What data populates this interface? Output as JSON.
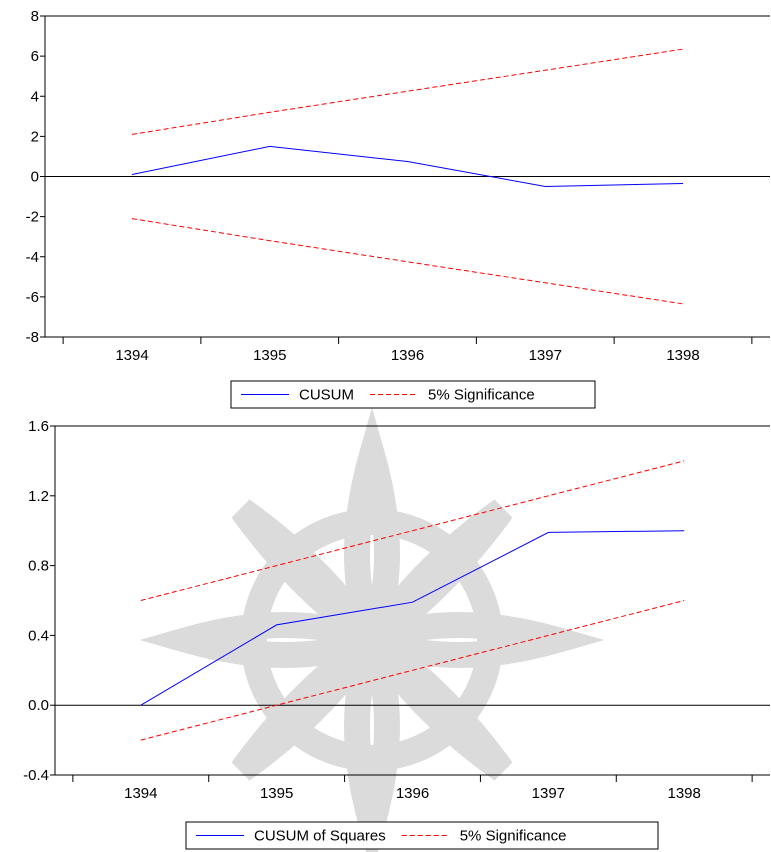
{
  "chart_data": [
    {
      "type": "line",
      "title": "",
      "xlabel": "",
      "ylabel": "",
      "categories": [
        "1394",
        "1395",
        "1396",
        "1397",
        "1398"
      ],
      "ylim": [
        -8,
        8
      ],
      "yticks": [
        "8",
        "6",
        "4",
        "2",
        "0",
        "-2",
        "-4",
        "-6",
        "-8"
      ],
      "ytick_values": [
        8,
        6,
        4,
        2,
        0,
        -2,
        -4,
        -6,
        -8
      ],
      "zero_line": true,
      "grid": false,
      "legend_placement": "bottom-center",
      "series": [
        {
          "name": "CUSUM",
          "values": [
            0.1,
            1.5,
            0.75,
            -0.5,
            -0.35
          ],
          "color": "#0000ff",
          "style": "solid"
        },
        {
          "name": "5% Significance",
          "values": [
            2.1,
            3.2,
            4.25,
            5.3,
            6.35
          ],
          "color": "#ff0000",
          "style": "dashed",
          "show_in_legend": true
        },
        {
          "name": "5% Significance",
          "values": [
            -2.1,
            -3.2,
            -4.25,
            -5.3,
            -6.35
          ],
          "color": "#ff0000",
          "style": "dashed",
          "show_in_legend": false
        }
      ]
    },
    {
      "type": "line",
      "title": "",
      "xlabel": "",
      "ylabel": "",
      "categories": [
        "1394",
        "1395",
        "1396",
        "1397",
        "1398"
      ],
      "ylim": [
        -0.4,
        1.6
      ],
      "yticks": [
        "1.6",
        "1.2",
        "0.8",
        "0.4",
        "0.0",
        "-0.4"
      ],
      "ytick_values": [
        1.6,
        1.2,
        0.8,
        0.4,
        0.0,
        -0.4
      ],
      "zero_line": true,
      "grid": false,
      "legend_placement": "bottom-center",
      "series": [
        {
          "name": "CUSUM of Squares",
          "values": [
            0.0,
            0.46,
            0.59,
            0.99,
            1.0
          ],
          "color": "#0000ff",
          "style": "solid"
        },
        {
          "name": "5% Significance",
          "values": [
            0.6,
            0.8,
            1.0,
            1.2,
            1.4
          ],
          "color": "#ff0000",
          "style": "dashed",
          "show_in_legend": true
        },
        {
          "name": "5% Significance",
          "values": [
            -0.2,
            0.0,
            0.2,
            0.4,
            0.6
          ],
          "color": "#ff0000",
          "style": "dashed",
          "show_in_legend": false
        }
      ]
    }
  ]
}
